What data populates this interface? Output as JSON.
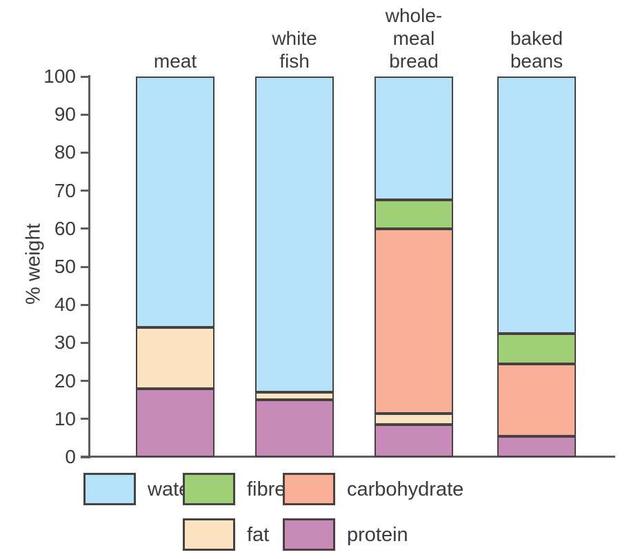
{
  "chart_data": {
    "type": "bar",
    "stacked": true,
    "ylabel": "% weight",
    "ylim": [
      0,
      100
    ],
    "yticks": [
      0,
      10,
      20,
      30,
      40,
      50,
      60,
      70,
      80,
      90,
      100
    ],
    "grid": false,
    "legend_position": "bottom",
    "categories": [
      "meat",
      "white fish",
      "whole-meal bread",
      "baked beans"
    ],
    "category_label_lines": [
      [
        "meat"
      ],
      [
        "white",
        "fish"
      ],
      [
        "whole-",
        "meal",
        "bread"
      ],
      [
        "baked",
        "beans"
      ]
    ],
    "series": [
      {
        "name": "protein",
        "color": "#c88bb9",
        "values": [
          18,
          15,
          8.5,
          5.5
        ]
      },
      {
        "name": "fat",
        "color": "#fce4c3",
        "values": [
          16,
          2,
          3,
          0
        ]
      },
      {
        "name": "carbohydrate",
        "color": "#f9af97",
        "values": [
          0,
          0,
          48.5,
          19
        ]
      },
      {
        "name": "fibre",
        "color": "#a0d077",
        "values": [
          0,
          0,
          7.5,
          8
        ]
      },
      {
        "name": "water",
        "color": "#b5e2f8",
        "values": [
          66,
          83,
          32.5,
          67.5
        ]
      }
    ]
  },
  "legend": {
    "rows": [
      [
        {
          "label": "water"
        },
        {
          "label": "fibre"
        },
        {
          "label": "carbohydrate"
        }
      ],
      [
        {
          "label": "fat"
        },
        {
          "label": "protein"
        }
      ]
    ]
  },
  "colors": {
    "axis": "#5d5d5d",
    "segment_border": "#474240",
    "text": "#3b3b3b"
  }
}
